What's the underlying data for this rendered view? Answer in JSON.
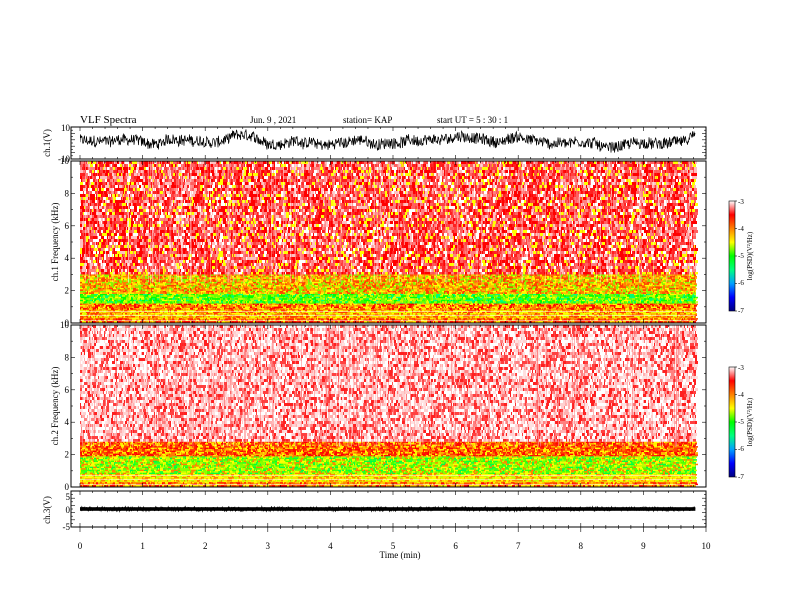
{
  "header": {
    "title": "VLF Spectra",
    "date": "Jun. 9 , 2021",
    "station": "station= KAP",
    "start_ut": "start UT =  5 : 30 : 1"
  },
  "chart_data": [
    {
      "type": "line",
      "name": "ch1-waveform",
      "ylabel": "ch.1(V)",
      "ylim": [
        -10,
        10
      ],
      "ytick_labels": [
        "10",
        "-10"
      ],
      "xlim": [
        0,
        10
      ],
      "data_xmax": 9.83,
      "signal": {
        "mean": 1.0,
        "low_range": [
          -5,
          0
        ],
        "high_range": [
          3,
          8
        ]
      }
    },
    {
      "type": "heatmap",
      "name": "ch1-spectrogram",
      "ylabel": "ch.1 Frequency (kHz)",
      "ylim": [
        0,
        10
      ],
      "ytick_labels": [
        "0",
        "2",
        "4",
        "6",
        "8",
        "10"
      ],
      "xlim": [
        0,
        10
      ],
      "data_xmax": 9.83,
      "colorbar": {
        "label": "log(PSD)(V²/Hz)",
        "range": [
          -7,
          -3
        ],
        "tick_labels": [
          "-3",
          "-4",
          "-5",
          "-6",
          "-7"
        ],
        "colors": [
          "#000080",
          "#0000ff",
          "#00a0ff",
          "#00ff80",
          "#00ff00",
          "#ffff00",
          "#ff8000",
          "#ff0000",
          "#ffffff"
        ]
      },
      "bands": [
        {
          "freq_khz": [
            0.0,
            0.3
          ],
          "level": "orange-red"
        },
        {
          "freq_khz": [
            0.3,
            0.8
          ],
          "level": "yellow-orange"
        },
        {
          "freq_khz": [
            0.8,
            1.2
          ],
          "level": "orange"
        },
        {
          "freq_khz": [
            1.2,
            1.8
          ],
          "level": "green"
        },
        {
          "freq_khz": [
            1.8,
            3.0
          ],
          "level": "orange-yellow"
        },
        {
          "freq_khz": [
            3.0,
            10.0
          ],
          "level": "red"
        }
      ]
    },
    {
      "type": "heatmap",
      "name": "ch2-spectrogram",
      "ylabel": "ch.2 Frequency (kHz)",
      "ylim": [
        0,
        10
      ],
      "ytick_labels": [
        "0",
        "2",
        "4",
        "6",
        "8",
        "10"
      ],
      "xlim": [
        0,
        10
      ],
      "data_xmax": 9.83,
      "colorbar": {
        "label": "log(PSD)(V²/Hz)",
        "range": [
          -7,
          -3
        ],
        "tick_labels": [
          "-3",
          "-4",
          "-5",
          "-6",
          "-7"
        ],
        "colors": [
          "#000080",
          "#0000ff",
          "#00a0ff",
          "#00ff80",
          "#00ff00",
          "#ffff00",
          "#ff8000",
          "#ff0000",
          "#ffffff"
        ]
      },
      "bands": [
        {
          "freq_khz": [
            0.0,
            0.3
          ],
          "level": "orange"
        },
        {
          "freq_khz": [
            0.3,
            0.8
          ],
          "level": "yellow"
        },
        {
          "freq_khz": [
            0.8,
            1.9
          ],
          "level": "yellow-green"
        },
        {
          "freq_khz": [
            1.9,
            2.8
          ],
          "level": "orange-red"
        },
        {
          "freq_khz": [
            2.8,
            10.0
          ],
          "level": "light-red"
        }
      ]
    },
    {
      "type": "line",
      "name": "ch3-waveform",
      "ylabel": "ch.3(V)",
      "ylim": [
        -5,
        5
      ],
      "ytick_labels": [
        "5",
        "0",
        "-5"
      ],
      "xlim": [
        0,
        10
      ],
      "data_xmax": 9.83,
      "signal": {
        "mean": 0.0,
        "range": [
          -0.5,
          0.5
        ]
      }
    }
  ],
  "xaxis": {
    "label": "Time (min)",
    "ticks": [
      0,
      1,
      2,
      3,
      4,
      5,
      6,
      7,
      8,
      9,
      10
    ],
    "tick_labels": [
      "0",
      "1",
      "2",
      "3",
      "4",
      "5",
      "6",
      "7",
      "8",
      "9",
      "10"
    ]
  }
}
